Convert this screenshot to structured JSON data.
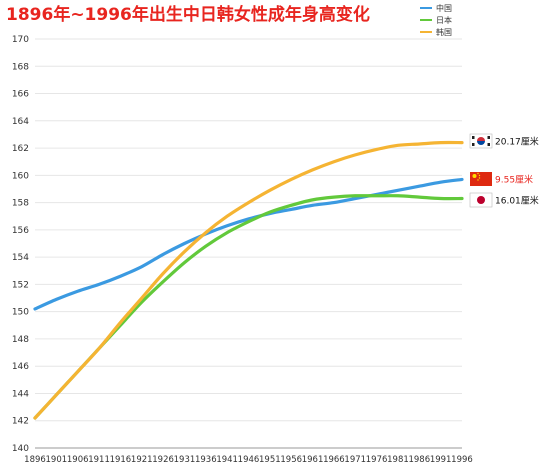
{
  "chart_data": {
    "type": "line",
    "title": "1896年~1996年出生中日韩女性成年身高变化",
    "title_color": "#e8251f",
    "ylim": [
      140,
      170
    ],
    "ytick_step": 2,
    "x": [
      "1896",
      "1901",
      "1906",
      "1911",
      "1916",
      "1921",
      "1926",
      "1931",
      "1936",
      "1941",
      "1946",
      "1951",
      "1956",
      "1961",
      "1966",
      "1971",
      "1976",
      "1981",
      "1986",
      "1991",
      "1996"
    ],
    "grid": true,
    "legend_position": "top-right",
    "series": [
      {
        "name": "中国",
        "color": "#3b9ae1",
        "values": [
          150.2,
          150.9,
          151.5,
          152.0,
          152.6,
          153.3,
          154.2,
          155.0,
          155.7,
          156.3,
          156.8,
          157.2,
          157.5,
          157.8,
          158.0,
          158.3,
          158.6,
          158.9,
          159.2,
          159.5,
          159.7
        ]
      },
      {
        "name": "日本",
        "color": "#62c93b",
        "values": [
          142.2,
          143.9,
          145.6,
          147.3,
          149.0,
          150.7,
          152.2,
          153.6,
          154.8,
          155.8,
          156.6,
          157.3,
          157.8,
          158.2,
          158.4,
          158.5,
          158.5,
          158.5,
          158.4,
          158.3,
          158.3
        ]
      },
      {
        "name": "韩国",
        "color": "#f5b433",
        "values": [
          142.2,
          143.9,
          145.6,
          147.3,
          149.2,
          151.0,
          152.8,
          154.4,
          155.8,
          157.0,
          158.0,
          158.9,
          159.7,
          160.4,
          161.0,
          161.5,
          161.9,
          162.2,
          162.3,
          162.4,
          162.4
        ]
      }
    ],
    "annotations": [
      {
        "country": "韩国",
        "text": "20.17厘米",
        "color": "#111111",
        "flag": "kr"
      },
      {
        "country": "中国",
        "text": "9.55厘米",
        "color": "#e8251f",
        "flag": "cn"
      },
      {
        "country": "日本",
        "text": "16.01厘米",
        "color": "#111111",
        "flag": "jp"
      }
    ]
  }
}
